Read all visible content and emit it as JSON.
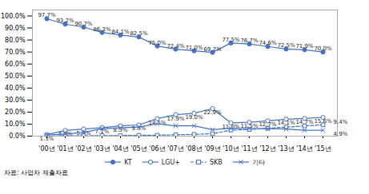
{
  "chart_data": {
    "type": "line",
    "categories": [
      "'00년",
      "'01년",
      "'02년",
      "'03년",
      "'04년",
      "'05년",
      "'06년",
      "'07년",
      "'08년",
      "'09년",
      "'10년",
      "'11년",
      "'12년",
      "'13년",
      "'14년",
      "'15년"
    ],
    "series": [
      {
        "name": "KT",
        "color": "#4472C4",
        "marker": "circle",
        "line_style": "solid",
        "values": [
          97.7,
          93.2,
          90.7,
          86.3,
          84.1,
          82.5,
          75.0,
          72.4,
          71.0,
          69.7,
          77.5,
          76.7,
          74.6,
          72.5,
          71.9,
          70.0
        ],
        "value_labels": [
          "97.7%",
          "93.2%",
          "90.7%",
          "86.3%",
          "84.1%",
          "82.5%",
          "75.0%",
          "72.4%",
          "71.0%",
          "69.7%",
          "77.5%",
          "76.7%",
          "74.6%",
          "72.5%",
          "71.9%",
          "70.0%"
        ]
      },
      {
        "name": "LGU+",
        "color": "#4472C4",
        "marker": "open_circle",
        "line_style": "solid",
        "values": [
          1.3,
          4.7,
          5.9,
          7.1,
          8.5,
          9.3,
          14.5,
          17.9,
          19.0,
          22.9,
          11.0,
          11.5,
          12.7,
          14.1,
          14.7,
          15.6
        ],
        "value_labels": [
          "1.3%",
          "4.7%",
          "5.9%",
          "7.1%",
          "8.5%",
          "9.3%",
          "14.5%",
          "17.9%",
          "19.0%",
          "22.9%",
          "11.0%",
          "11.5%",
          "12.7%",
          "14.1%",
          "14.7%",
          "15.6%"
        ]
      },
      {
        "name": "SKB",
        "color": "#4472C4",
        "marker": "open_square",
        "line_style": "dashed",
        "values": [
          0.3,
          0.3,
          0.3,
          0.4,
          0.5,
          0.7,
          0.8,
          1.1,
          1.5,
          2.0,
          5.0,
          5.5,
          6.5,
          7.5,
          8.5,
          9.4
        ],
        "value_labels": [
          null,
          null,
          null,
          null,
          null,
          null,
          null,
          null,
          null,
          null,
          null,
          null,
          null,
          null,
          null,
          "9.4%"
        ]
      },
      {
        "name": "기타",
        "color": "#4472C4",
        "marker": "x",
        "line_style": "solid",
        "values": [
          1.0,
          1.8,
          3.1,
          6.2,
          6.9,
          7.5,
          10.2,
          8.6,
          8.5,
          5.4,
          6.5,
          6.3,
          6.2,
          5.9,
          4.9,
          4.9
        ],
        "value_labels": [
          null,
          null,
          null,
          null,
          null,
          null,
          null,
          null,
          null,
          null,
          null,
          null,
          null,
          null,
          null,
          "4.9%"
        ]
      }
    ],
    "ylim": [
      0,
      105
    ],
    "yticks": [
      {
        "value": 0,
        "label": "0.0%"
      },
      {
        "value": 10,
        "label": "10.0%"
      },
      {
        "value": 20,
        "label": "20.0%"
      },
      {
        "value": 30,
        "label": "30.0%"
      },
      {
        "value": 40,
        "label": "40.0%"
      },
      {
        "value": 50,
        "label": "50.0%"
      },
      {
        "value": 60,
        "label": "60.0%"
      },
      {
        "value": 70,
        "label": "70.0%"
      },
      {
        "value": 80,
        "label": "80.0%"
      },
      {
        "value": 90,
        "label": "90.0%"
      },
      {
        "value": 100,
        "label": "100.0%"
      }
    ],
    "grid": false,
    "data_labels": true,
    "legend": "bottom",
    "source": "자료: 사업자 제출자료"
  }
}
